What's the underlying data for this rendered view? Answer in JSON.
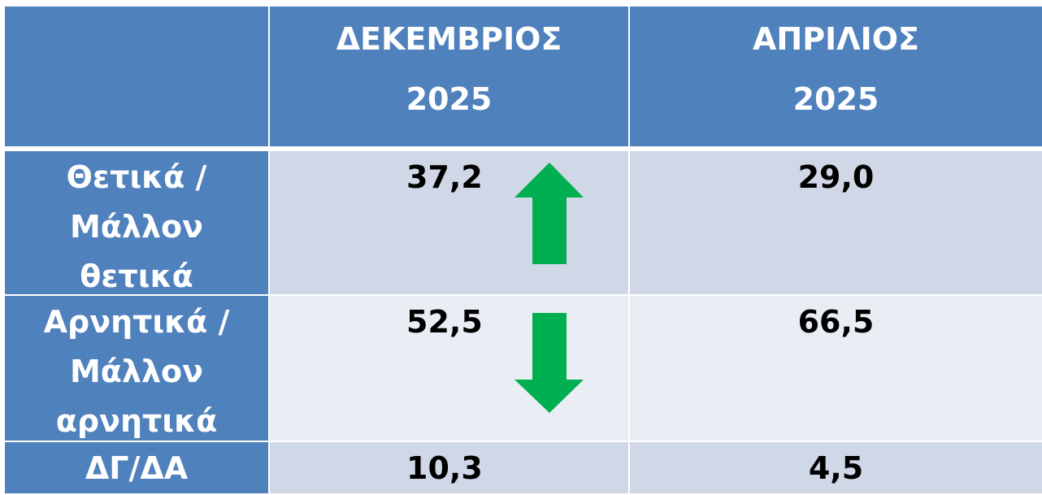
{
  "table": {
    "header": [
      [
        "ΔΕΚΕΜΒΡΙΟΣ",
        "2025"
      ],
      [
        "ΑΠΡΙΛΙΟΣ",
        "2025"
      ]
    ],
    "rows": [
      {
        "label": [
          "Θετικά /",
          "Μάλλον",
          "θετικά"
        ],
        "values": [
          "37,2",
          "29,0"
        ]
      },
      {
        "label": [
          "Αρνητικά /",
          "Μάλλον",
          "αρνητικά"
        ],
        "values": [
          "52,5",
          "66,5"
        ]
      },
      {
        "label": [
          "ΔΓ/ΔΑ"
        ],
        "values": [
          "10,3",
          "4,5"
        ]
      }
    ]
  }
}
